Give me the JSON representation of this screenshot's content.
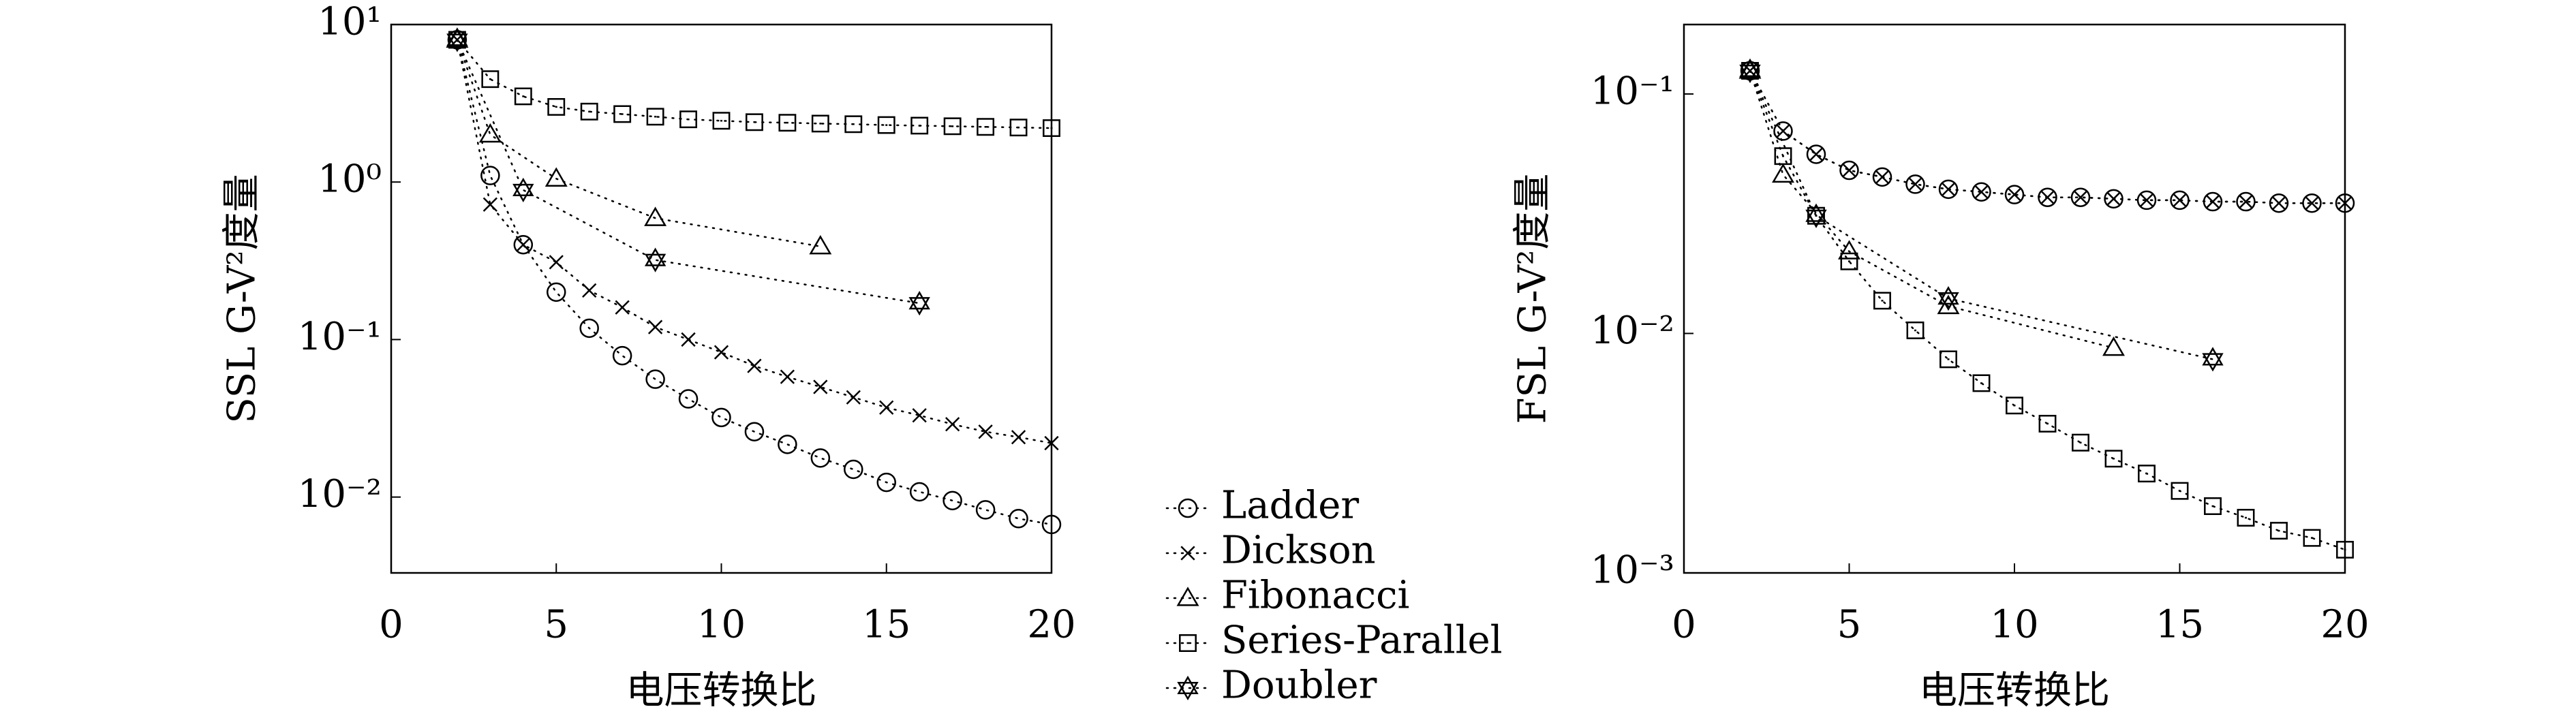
{
  "chart_data": [
    {
      "type": "scatter-line",
      "ylabel": "SSL G-V²度量",
      "xlabel": "电压转换比",
      "log_y": true,
      "xlim": [
        0,
        20
      ],
      "xticks": [
        0,
        5,
        10,
        15,
        20
      ],
      "ylim": [
        0.0033,
        10
      ],
      "yticks": [
        {
          "value": 10,
          "label": "10¹"
        },
        {
          "value": 1,
          "label": "10⁰"
        },
        {
          "value": 0.1,
          "label": "10⁻¹"
        },
        {
          "value": 0.01,
          "label": "10⁻²"
        }
      ],
      "series": [
        {
          "name": "Ladder",
          "marker": "circle",
          "color": "#000000",
          "x": [
            2,
            3,
            4,
            5,
            6,
            7,
            8,
            9,
            10,
            11,
            12,
            13,
            14,
            15,
            16,
            17,
            18,
            19,
            20
          ],
          "values": [
            8,
            1.1,
            0.4,
            0.2,
            0.118,
            0.079,
            0.056,
            0.042,
            0.032,
            0.026,
            0.0216,
            0.0177,
            0.015,
            0.0124,
            0.0108,
            0.0095,
            0.0083,
            0.0073,
            0.0067
          ]
        },
        {
          "name": "Dickson",
          "marker": "cross",
          "color": "#000000",
          "x": [
            2,
            3,
            4,
            5,
            6,
            7,
            8,
            9,
            10,
            11,
            12,
            13,
            14,
            15,
            16,
            17,
            18,
            19,
            20
          ],
          "values": [
            8,
            0.72,
            0.4,
            0.31,
            0.205,
            0.16,
            0.12,
            0.1,
            0.083,
            0.068,
            0.058,
            0.05,
            0.043,
            0.037,
            0.033,
            0.029,
            0.026,
            0.024,
            0.022
          ]
        },
        {
          "name": "Fibonacci",
          "marker": "triangle",
          "color": "#000000",
          "x": [
            2,
            3,
            5,
            8,
            13
          ],
          "values": [
            8,
            2.0,
            1.05,
            0.59,
            0.39
          ]
        },
        {
          "name": "Series-Parallel",
          "marker": "square",
          "color": "#000000",
          "x": [
            2,
            3,
            4,
            5,
            6,
            7,
            8,
            9,
            10,
            11,
            12,
            13,
            14,
            15,
            16,
            17,
            18,
            19,
            20
          ],
          "values": [
            8,
            4.5,
            3.5,
            3.0,
            2.8,
            2.7,
            2.6,
            2.5,
            2.45,
            2.4,
            2.38,
            2.35,
            2.33,
            2.3,
            2.28,
            2.26,
            2.24,
            2.22,
            2.2
          ]
        },
        {
          "name": "Doubler",
          "marker": "star",
          "color": "#000000",
          "x": [
            2,
            4,
            8,
            16
          ],
          "values": [
            8,
            0.89,
            0.32,
            0.17
          ]
        }
      ]
    },
    {
      "type": "scatter-line",
      "ylabel": "FSL G-V²度量",
      "xlabel": "电压转换比",
      "log_y": true,
      "xlim": [
        0,
        20
      ],
      "xticks": [
        0,
        5,
        10,
        15,
        20
      ],
      "ylim": [
        0.001,
        0.195
      ],
      "yticks": [
        {
          "value": 0.1,
          "label": "10⁻¹"
        },
        {
          "value": 0.01,
          "label": "10⁻²"
        },
        {
          "value": 0.001,
          "label": "10⁻³"
        }
      ],
      "series": [
        {
          "name": "Ladder",
          "marker": "circle",
          "color": "#000000",
          "x": [
            2,
            3,
            4,
            5,
            6,
            7,
            8,
            9,
            10,
            11,
            12,
            13,
            14,
            15,
            16,
            17,
            18,
            19,
            20
          ],
          "values": [
            0.125,
            0.07,
            0.056,
            0.048,
            0.045,
            0.042,
            0.04,
            0.039,
            0.038,
            0.037,
            0.037,
            0.0365,
            0.036,
            0.036,
            0.0355,
            0.0355,
            0.035,
            0.035,
            0.035
          ]
        },
        {
          "name": "Dickson",
          "marker": "cross",
          "color": "#000000",
          "x": [
            2,
            3,
            4,
            5,
            6,
            7,
            8,
            9,
            10,
            11,
            12,
            13,
            14,
            15,
            16,
            17,
            18,
            19,
            20
          ],
          "values": [
            0.125,
            0.07,
            0.056,
            0.048,
            0.045,
            0.042,
            0.04,
            0.039,
            0.038,
            0.037,
            0.037,
            0.0365,
            0.036,
            0.036,
            0.0355,
            0.0355,
            0.035,
            0.035,
            0.035
          ]
        },
        {
          "name": "Fibonacci",
          "marker": "triangle",
          "color": "#000000",
          "x": [
            2,
            3,
            5,
            8,
            13
          ],
          "values": [
            0.125,
            0.046,
            0.022,
            0.013,
            0.0087
          ]
        },
        {
          "name": "Series-Parallel",
          "marker": "square",
          "color": "#000000",
          "x": [
            2,
            3,
            4,
            5,
            6,
            7,
            8,
            9,
            10,
            11,
            12,
            13,
            14,
            15,
            16,
            17,
            18,
            19,
            20
          ],
          "values": [
            0.125,
            0.055,
            0.031,
            0.02,
            0.0137,
            0.0103,
            0.0078,
            0.0062,
            0.005,
            0.0042,
            0.0035,
            0.003,
            0.0026,
            0.0022,
            0.0019,
            0.0017,
            0.0015,
            0.0014,
            0.00125
          ]
        },
        {
          "name": "Doubler",
          "marker": "star",
          "color": "#000000",
          "x": [
            2,
            4,
            8,
            16
          ],
          "values": [
            0.125,
            0.031,
            0.014,
            0.0078
          ]
        }
      ]
    }
  ]
}
